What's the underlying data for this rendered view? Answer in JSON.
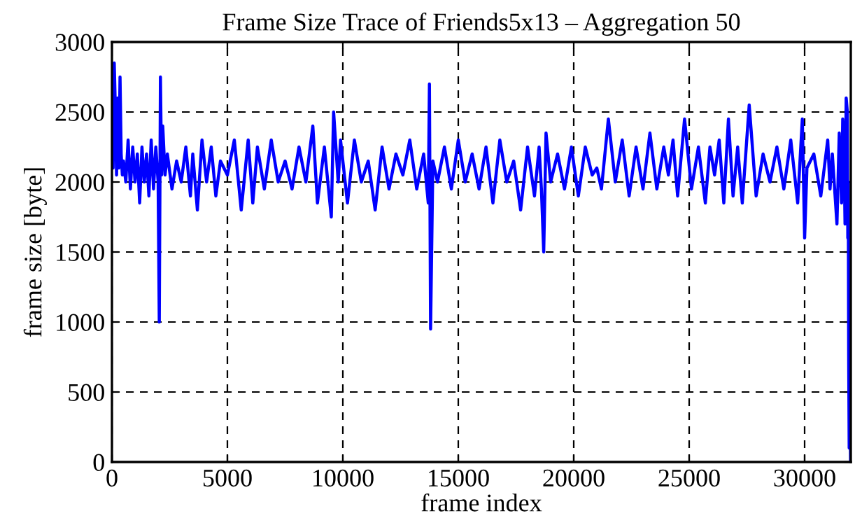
{
  "chart_data": {
    "type": "line",
    "title": "Frame Size Trace of Friends5x13 – Aggregation 50",
    "xlabel": "frame index",
    "ylabel": "frame size [byte]",
    "series": [
      {
        "color": "#0000ff",
        "x": [
          0,
          50,
          100,
          150,
          200,
          250,
          300,
          350,
          400,
          450,
          500,
          600,
          700,
          800,
          900,
          1000,
          1100,
          1200,
          1300,
          1400,
          1500,
          1600,
          1700,
          1800,
          1900,
          2000,
          2050,
          2100,
          2150,
          2200,
          2300,
          2400,
          2600,
          2800,
          3000,
          3200,
          3400,
          3500,
          3700,
          3900,
          4100,
          4300,
          4500,
          4700,
          5000,
          5300,
          5600,
          5900,
          6100,
          6300,
          6600,
          6900,
          7200,
          7500,
          7800,
          8100,
          8400,
          8700,
          8900,
          9200,
          9500,
          9600,
          9800,
          9900,
          10200,
          10500,
          10800,
          11100,
          11400,
          11700,
          12000,
          12300,
          12600,
          12900,
          13200,
          13500,
          13700,
          13750,
          13800,
          13900,
          14100,
          14400,
          14700,
          15000,
          15300,
          15600,
          15900,
          16200,
          16500,
          16800,
          17100,
          17400,
          17700,
          18000,
          18300,
          18500,
          18600,
          18700,
          18800,
          19000,
          19300,
          19600,
          19900,
          20200,
          20500,
          20800,
          21000,
          21200,
          21500,
          21800,
          22100,
          22400,
          22700,
          23000,
          23300,
          23600,
          23900,
          24100,
          24300,
          24500,
          24800,
          25100,
          25400,
          25700,
          25900,
          26100,
          26300,
          26500,
          26700,
          26900,
          27100,
          27300,
          27600,
          27900,
          28200,
          28500,
          28800,
          29100,
          29400,
          29700,
          29900,
          30000,
          30100,
          30400,
          30700,
          31000,
          31100,
          31200,
          31400,
          31500,
          31600,
          31650,
          31700,
          31750,
          31800,
          31850,
          31870,
          31890,
          31910,
          31930,
          31950,
          31990
        ],
        "values": [
          2700,
          2100,
          2850,
          2500,
          2050,
          2600,
          2100,
          2750,
          2200,
          2050,
          2150,
          2000,
          2300,
          1950,
          2250,
          2000,
          2200,
          1850,
          2250,
          2000,
          2200,
          1900,
          2300,
          1950,
          2250,
          2000,
          1000,
          2750,
          2050,
          2400,
          2050,
          2200,
          1950,
          2150,
          2000,
          2250,
          1900,
          2200,
          1800,
          2300,
          2000,
          2250,
          1900,
          2150,
          2050,
          2300,
          1800,
          2300,
          1850,
          2250,
          1950,
          2300,
          2000,
          2150,
          1950,
          2250,
          2000,
          2400,
          1850,
          2250,
          1750,
          2500,
          2000,
          2300,
          1850,
          2300,
          2000,
          2150,
          1800,
          2250,
          1950,
          2200,
          2050,
          2300,
          1950,
          2200,
          1850,
          2700,
          950,
          2150,
          2000,
          2250,
          1950,
          2300,
          2000,
          2200,
          1950,
          2250,
          1850,
          2300,
          2000,
          2150,
          1800,
          2250,
          1900,
          2250,
          1950,
          1500,
          2350,
          2000,
          2200,
          1950,
          2250,
          1900,
          2250,
          2050,
          2100,
          1950,
          2450,
          2000,
          2300,
          1900,
          2250,
          1950,
          2350,
          1950,
          2250,
          2050,
          2300,
          1900,
          2450,
          1950,
          2250,
          1850,
          2250,
          2050,
          2300,
          1850,
          2450,
          1900,
          2250,
          1850,
          2550,
          1900,
          2200,
          2000,
          2250,
          1950,
          2300,
          1850,
          2450,
          1600,
          2100,
          2200,
          1900,
          2300,
          1950,
          2200,
          1700,
          2350,
          1850,
          2450,
          2300,
          1700,
          2600,
          2500,
          1600,
          2000,
          700,
          100,
          900,
          0
        ]
      }
    ],
    "xlim": [
      0,
      32000
    ],
    "ylim": [
      0,
      3000
    ],
    "xticks": [
      0,
      5000,
      10000,
      15000,
      20000,
      25000,
      30000
    ],
    "yticks": [
      0,
      500,
      1000,
      1500,
      2000,
      2500,
      3000
    ],
    "grid": true,
    "line_style": "solid",
    "marker": "none"
  }
}
